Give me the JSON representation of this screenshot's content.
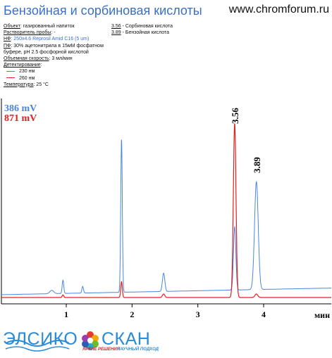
{
  "header": {
    "title": "Бензойная и сорбиновая кислоты",
    "site": "www.chromforum.ru"
  },
  "info": {
    "object_key": "Объект",
    "object_val": ": газированный напиток",
    "solvent_key": "Растворитель пробы",
    "solvent_val": ": -",
    "sp_key": "НФ",
    "sp_val": ": 250x4.6 Reprosil Amid C16 (5 um)",
    "mp_key": "ПФ",
    "mp_val_1": ": 30% ацетонитрила в 15мМ фосфатном",
    "mp_val_2": "буфере, pH 2.5 фосфорной кислотой",
    "flow_key": "Объемная скорость",
    "flow_val": ": 3 мл/мин",
    "detect_key": "Детектирование",
    "detect_val": ":",
    "wl_230": "230 нм",
    "wl_260": "260 нм",
    "temp_key": "Температура",
    "temp_val": ": 25 °C"
  },
  "peaks_list": {
    "p1_key": "3.56",
    "p1_val": " - Сорбиновая кислота",
    "p2_key": "3.89",
    "p2_val": " - Бензойная кислота"
  },
  "scales": {
    "blue": "386 mV",
    "red": "871 mV"
  },
  "logo": {
    "word_left": "ЭЛСИКО",
    "word_right": "СКАН",
    "tag1": "ЯРКИЕ РЕШЕНИЯ",
    "tag2": "НАУЧНЫЙ ПОДХОД"
  },
  "colors": {
    "blue": "#4a86e0",
    "red": "#e02020",
    "title": "#3a6fc8"
  },
  "chart_data": {
    "type": "line",
    "xlabel": "мин",
    "xticks": [
      1,
      2,
      3,
      4
    ],
    "xlim": [
      0,
      5.0
    ],
    "peak_labels": [
      "3.56",
      "3.89"
    ],
    "series": [
      {
        "name": "230 нм",
        "color": "#4a86e0",
        "baseline": 0.04,
        "peaks": [
          {
            "t": 0.78,
            "h": 0.02,
            "w": 0.03
          },
          {
            "t": 0.95,
            "h": 0.08,
            "w": 0.012
          },
          {
            "t": 1.25,
            "h": 0.04,
            "w": 0.012
          },
          {
            "t": 1.84,
            "h": 0.92,
            "w": 0.012
          },
          {
            "t": 2.48,
            "h": 0.11,
            "w": 0.018
          },
          {
            "t": 3.56,
            "h": 0.38,
            "w": 0.018
          },
          {
            "t": 3.89,
            "h": 0.65,
            "w": 0.028
          }
        ]
      },
      {
        "name": "260 нм",
        "color": "#e02020",
        "baseline": 0.0,
        "peaks": [
          {
            "t": 0.95,
            "h": 0.015,
            "w": 0.012
          },
          {
            "t": 1.84,
            "h": 0.09,
            "w": 0.012
          },
          {
            "t": 2.48,
            "h": 0.02,
            "w": 0.018
          },
          {
            "t": 3.56,
            "h": 0.99,
            "w": 0.02
          },
          {
            "t": 3.89,
            "h": 0.02,
            "w": 0.022
          }
        ]
      }
    ]
  }
}
